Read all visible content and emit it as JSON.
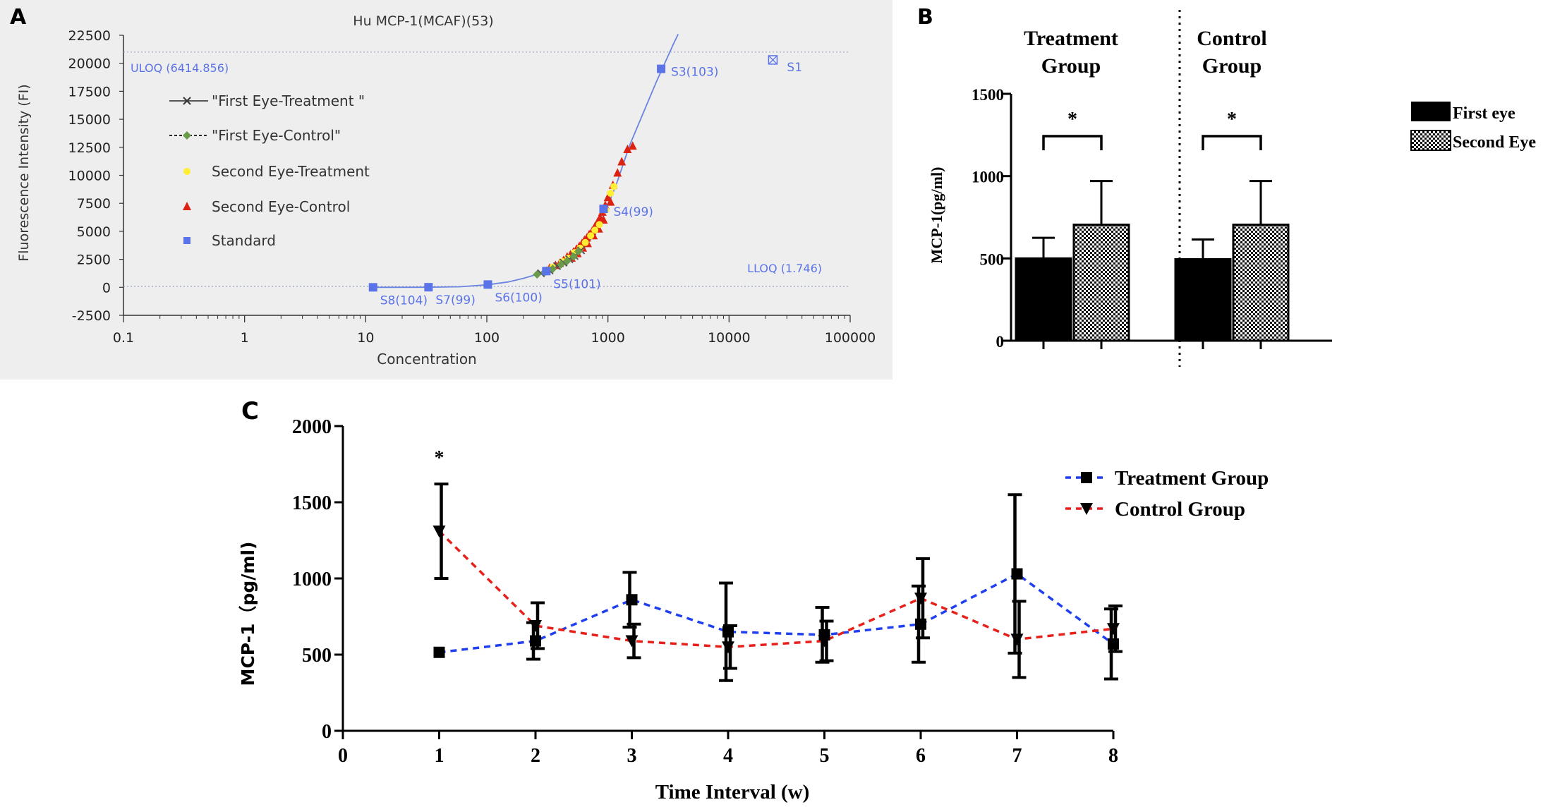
{
  "colors": {
    "panel_a_bg": "#eeeeee",
    "standard": "#5b73e8",
    "curve": "#6a84e0",
    "treatment_eye1": "#555555",
    "control_eye1": "#6a9a4a",
    "second_treatment": "#ffee33",
    "second_control": "#dd2211",
    "blue_dashed": "#1f3ff0",
    "red_dashed": "#e8201c",
    "black": "#000000"
  },
  "panels": {
    "a": "A",
    "b": "B",
    "c": "C"
  },
  "chart_data": [
    {
      "id": "A",
      "type": "scatter",
      "title": "Hu MCP-1(MCAF)(53)",
      "xlabel": "Concentration",
      "ylabel": "Fluorescence Intensity (FI)",
      "xscale": "log",
      "xlim": [
        0.1,
        100000
      ],
      "ylim": [
        -2500,
        22500
      ],
      "xticks": [
        "0.1",
        "1",
        "10",
        "100",
        "1000",
        "10000",
        "100000"
      ],
      "yticks": [
        "22500",
        "20000",
        "17500",
        "15000",
        "12500",
        "10000",
        "7500",
        "5000",
        "2500",
        "0",
        "-2500"
      ],
      "uloq": {
        "label": "ULOQ (6414.856)",
        "y": 21000
      },
      "lloq": {
        "label": "LLOQ (1.746)",
        "y": 80
      },
      "legend": [
        "\"First Eye-Treatment \"",
        "\"First Eye-Control\"",
        "Second Eye-Treatment",
        "Second Eye-Control",
        "Standard"
      ],
      "standards": [
        {
          "label": "S8(104)",
          "x": 11.5,
          "y": 0
        },
        {
          "label": "S7(99)",
          "x": 33,
          "y": 10
        },
        {
          "label": "S6(100)",
          "x": 102,
          "y": 250
        },
        {
          "label": "S5(101)",
          "x": 310,
          "y": 1450
        },
        {
          "label": "S4(99)",
          "x": 920,
          "y": 7000
        },
        {
          "label": "S3(103)",
          "x": 2750,
          "y": 19500
        }
      ],
      "outlier": {
        "label": "S1",
        "x": 23000,
        "y": 20300
      },
      "second_control_points": [
        [
          330,
          1700
        ],
        [
          370,
          1950
        ],
        [
          400,
          2150
        ],
        [
          430,
          2400
        ],
        [
          460,
          2700
        ],
        [
          490,
          2900
        ],
        [
          520,
          3150
        ],
        [
          550,
          3400
        ],
        [
          580,
          3650
        ],
        [
          610,
          3900
        ],
        [
          640,
          4200
        ],
        [
          670,
          4400
        ],
        [
          700,
          4700
        ],
        [
          740,
          5000
        ],
        [
          780,
          5400
        ],
        [
          820,
          5800
        ],
        [
          860,
          6200
        ],
        [
          900,
          6700
        ],
        [
          950,
          7300
        ],
        [
          1000,
          8000
        ],
        [
          1100,
          9100
        ],
        [
          1200,
          10200
        ],
        [
          1300,
          11200
        ],
        [
          1450,
          12300
        ],
        [
          1600,
          12600
        ],
        [
          500,
          2600
        ],
        [
          560,
          3000
        ],
        [
          620,
          3500
        ],
        [
          680,
          3900
        ],
        [
          760,
          4600
        ],
        [
          840,
          5200
        ],
        [
          920,
          6000
        ],
        [
          1050,
          7600
        ]
      ],
      "second_treatment_points": [
        [
          350,
          1800
        ],
        [
          420,
          2300
        ],
        [
          470,
          2600
        ],
        [
          530,
          3100
        ],
        [
          590,
          3500
        ],
        [
          650,
          4000
        ],
        [
          720,
          4600
        ],
        [
          780,
          5100
        ],
        [
          850,
          5600
        ],
        [
          1050,
          8400
        ],
        [
          1120,
          9000
        ],
        [
          960,
          6900
        ]
      ],
      "first_treatment_points": [
        [
          280,
          1250
        ],
        [
          330,
          1500
        ],
        [
          380,
          1900
        ],
        [
          430,
          2200
        ],
        [
          480,
          2500
        ],
        [
          530,
          2800
        ],
        [
          600,
          3300
        ]
      ],
      "first_control_points": [
        [
          260,
          1150
        ],
        [
          300,
          1350
        ],
        [
          350,
          1650
        ],
        [
          410,
          2050
        ],
        [
          460,
          2350
        ],
        [
          520,
          2750
        ],
        [
          570,
          3200
        ]
      ],
      "curve": [
        [
          11,
          0
        ],
        [
          30,
          5
        ],
        [
          60,
          50
        ],
        [
          100,
          220
        ],
        [
          150,
          480
        ],
        [
          200,
          800
        ],
        [
          250,
          1100
        ],
        [
          300,
          1400
        ],
        [
          400,
          2000
        ],
        [
          500,
          2700
        ],
        [
          600,
          3400
        ],
        [
          700,
          4100
        ],
        [
          800,
          5000
        ],
        [
          900,
          6200
        ],
        [
          1000,
          7300
        ],
        [
          1200,
          9500
        ],
        [
          1500,
          12600
        ],
        [
          2000,
          15800
        ],
        [
          2500,
          18300
        ],
        [
          3000,
          20200
        ],
        [
          3500,
          21800
        ],
        [
          3800,
          22600
        ]
      ]
    },
    {
      "id": "B",
      "type": "bar",
      "ylabel": "MCP-1(pg/ml)",
      "ylim": [
        0,
        1500
      ],
      "yticks": [
        "1500",
        "1000",
        "500",
        "0"
      ],
      "group_labels": [
        [
          "Treatment",
          "Group"
        ],
        [
          "Control",
          "Group"
        ]
      ],
      "categories": [
        "Treatment Group",
        "Control Group"
      ],
      "series": [
        {
          "name": "First eye",
          "values": [
            500,
            495
          ],
          "errors": [
            125,
            120
          ]
        },
        {
          "name": "Second Eye",
          "values": [
            705,
            705
          ],
          "errors": [
            265,
            265
          ]
        }
      ],
      "significance": [
        "*",
        "*"
      ],
      "legend": [
        "First eye",
        "Second Eye"
      ]
    },
    {
      "id": "C",
      "type": "line",
      "xlabel": "Time Interval (w)",
      "ylabel": "MCP-1（pg/ml)",
      "xlim": [
        0,
        8
      ],
      "ylim": [
        0,
        2000
      ],
      "xticks": [
        "0",
        "1",
        "2",
        "3",
        "4",
        "5",
        "6",
        "7",
        "8"
      ],
      "yticks": [
        "2000",
        "1500",
        "1000",
        "500",
        "0"
      ],
      "x": [
        1,
        2,
        3,
        4,
        5,
        6,
        7,
        8
      ],
      "series": [
        {
          "name": "Treatment Group",
          "values": [
            515,
            590,
            860,
            650,
            630,
            700,
            1030,
            570
          ],
          "errors": [
            0,
            120,
            180,
            320,
            180,
            250,
            520,
            230
          ]
        },
        {
          "name": "Control Group",
          "values": [
            1310,
            690,
            590,
            550,
            590,
            870,
            600,
            670
          ],
          "errors": [
            310,
            150,
            110,
            140,
            130,
            260,
            250,
            150
          ]
        }
      ],
      "annotation": {
        "text": "*",
        "x": 1
      }
    }
  ]
}
